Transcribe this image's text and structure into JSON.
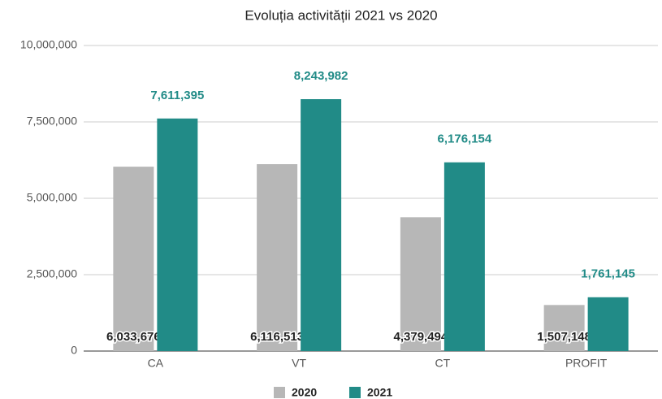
{
  "chart_data": {
    "type": "bar",
    "title": "Evoluția activității 2021 vs 2020",
    "categories": [
      "CA",
      "VT",
      "CT",
      "PROFIT"
    ],
    "series": [
      {
        "name": "2020",
        "color": "#b7b7b7",
        "values": [
          6033676,
          6116513,
          4379494,
          1507148
        ],
        "value_labels": [
          "6,033,676",
          "6,116,513",
          "4,379,494",
          "1,507,148"
        ]
      },
      {
        "name": "2021",
        "color": "#218b87",
        "values": [
          7611395,
          8243982,
          6176154,
          1761145
        ],
        "value_labels": [
          "7,611,395",
          "8,243,982",
          "6,176,154",
          "1,761,145"
        ]
      }
    ],
    "ylim": [
      0,
      10000000
    ],
    "yticks": [
      0,
      {
        "value": 2500000,
        "label": "2,500,000"
      },
      {
        "value": 5000000,
        "label": "5,000,000"
      },
      {
        "value": 7500000,
        "label": "7,500,000"
      },
      {
        "value": 10000000,
        "label": "10,000,000"
      }
    ],
    "grid": true,
    "legend": "bottom"
  }
}
